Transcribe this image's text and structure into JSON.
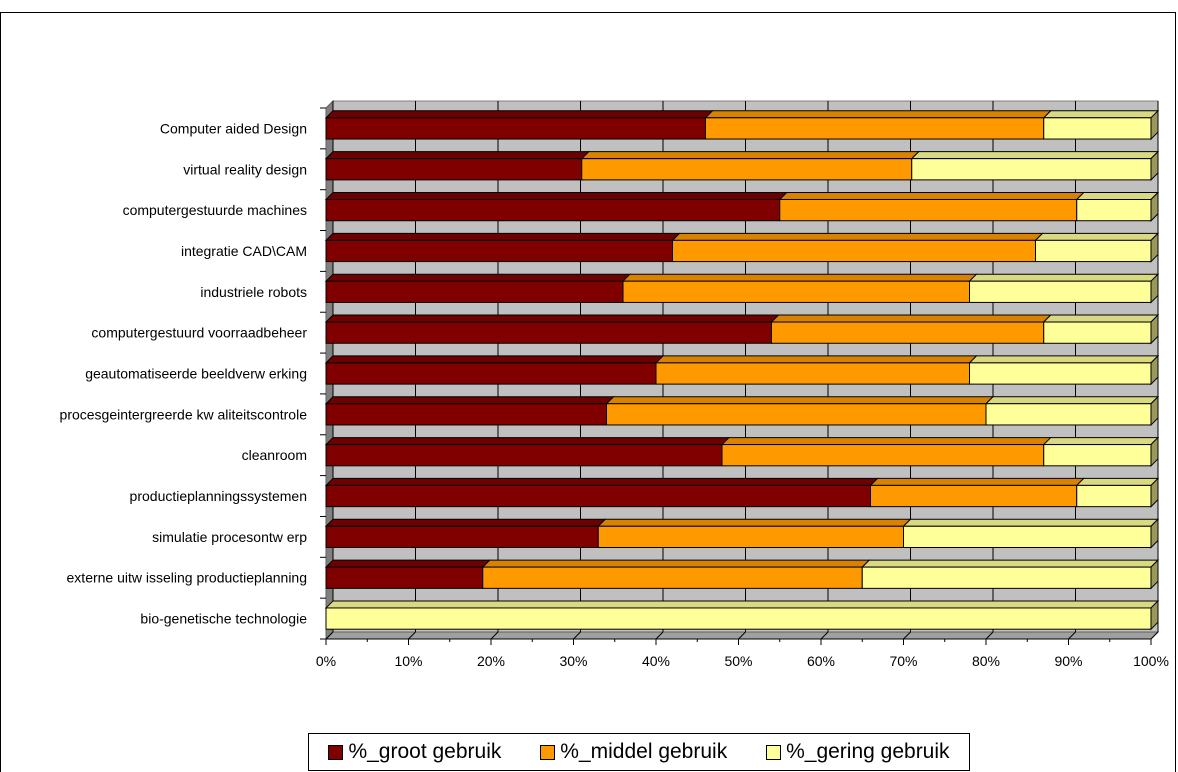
{
  "chart_data": {
    "type": "bar",
    "orientation": "horizontal",
    "stacked": "percent",
    "categories": [
      "Computer aided Design",
      "virtual reality design",
      "computergestuurde machines",
      "integratie CAD\\CAM",
      "industriele robots",
      "computergestuurd voorraadbeheer",
      "geautomatiseerde beeldverw erking",
      "procesgeintergreerde kw aliteitscontrole",
      "cleanroom",
      "productieplanningssystemen",
      "simulatie procesontw erp",
      "externe uitw isseling productieplanning",
      "bio-genetische technologie"
    ],
    "series": [
      {
        "name": "%_groot gebruik",
        "color": "#800000",
        "values": [
          46,
          31,
          55,
          42,
          36,
          54,
          40,
          34,
          48,
          66,
          33,
          19,
          0
        ]
      },
      {
        "name": "%_middel gebruik",
        "color": "#FF9900",
        "values": [
          41,
          40,
          36,
          44,
          42,
          33,
          38,
          46,
          39,
          25,
          37,
          46,
          0
        ]
      },
      {
        "name": "%_gering gebruik",
        "color": "#FFFF99",
        "values": [
          13,
          29,
          9,
          14,
          22,
          13,
          22,
          20,
          13,
          9,
          30,
          35,
          100
        ]
      }
    ],
    "xticks": [
      "0%",
      "10%",
      "20%",
      "30%",
      "40%",
      "50%",
      "60%",
      "70%",
      "80%",
      "90%",
      "100%"
    ],
    "xlim": [
      0,
      100
    ],
    "grid": true,
    "legend_position": "bottom"
  }
}
